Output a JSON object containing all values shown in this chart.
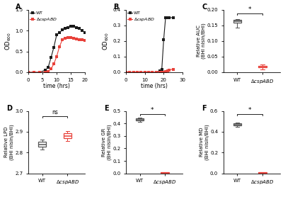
{
  "panel_A": {
    "WT_x": [
      0,
      2,
      4,
      6,
      7,
      8,
      9,
      10,
      11,
      12,
      13,
      14,
      15,
      16,
      17,
      18,
      19,
      20
    ],
    "WT_y": [
      0.0,
      0.0,
      0.0,
      0.05,
      0.12,
      0.35,
      0.6,
      0.9,
      0.95,
      1.02,
      1.05,
      1.08,
      1.1,
      1.1,
      1.08,
      1.05,
      1.0,
      0.95
    ],
    "csp_x": [
      0,
      2,
      4,
      6,
      7,
      8,
      9,
      10,
      11,
      12,
      13,
      14,
      15,
      16,
      17,
      18,
      19,
      20
    ],
    "csp_y": [
      0.0,
      0.0,
      0.0,
      0.0,
      0.02,
      0.08,
      0.2,
      0.38,
      0.62,
      0.78,
      0.82,
      0.83,
      0.84,
      0.82,
      0.8,
      0.78,
      0.78,
      0.77
    ],
    "xlabel": "time (hrs)",
    "ylabel": "OD$_{600}$",
    "xlim": [
      0,
      20
    ],
    "ylim": [
      0.0,
      1.5
    ],
    "yticks": [
      0.0,
      0.5,
      1.0,
      1.5
    ],
    "xticks": [
      0,
      5,
      10,
      15,
      20
    ]
  },
  "panel_B": {
    "WT_x": [
      0,
      2,
      4,
      6,
      8,
      10,
      12,
      14,
      16,
      18,
      19,
      20,
      21,
      22,
      23,
      25
    ],
    "WT_y": [
      0.0,
      0.0,
      0.0,
      0.0,
      0.0,
      0.0,
      0.0,
      0.0,
      0.0,
      0.01,
      0.02,
      0.21,
      0.35,
      0.35,
      0.35,
      0.35
    ],
    "csp_x": [
      0,
      2,
      4,
      6,
      8,
      10,
      12,
      14,
      16,
      18,
      19,
      20,
      21,
      22,
      23,
      25
    ],
    "csp_y": [
      0.0,
      0.0,
      0.0,
      0.0,
      0.0,
      0.0,
      0.0,
      0.0,
      0.0,
      0.0,
      0.0,
      0.0,
      0.005,
      0.01,
      0.015,
      0.02
    ],
    "xlabel": "time (hrs)",
    "ylabel": "OD$_{600}$",
    "xlim": [
      0,
      30
    ],
    "ylim": [
      0.0,
      0.4
    ],
    "yticks": [
      0.0,
      0.1,
      0.2,
      0.3,
      0.4
    ],
    "xticks": [
      0,
      10,
      20,
      30
    ]
  },
  "panel_C": {
    "WT_box": {
      "median": 0.163,
      "q1": 0.158,
      "q3": 0.167,
      "whislo": 0.143,
      "whishi": 0.17
    },
    "csp_box": {
      "median": 0.018,
      "q1": 0.015,
      "q3": 0.021,
      "whislo": 0.008,
      "whishi": 0.024
    },
    "ylabel": "Relative AUC\n(BHI nisin/BHI)",
    "ylim": [
      0.0,
      0.2
    ],
    "yticks": [
      0.0,
      0.05,
      0.1,
      0.15,
      0.2
    ],
    "sig": "*",
    "sig_y": 0.188
  },
  "panel_D": {
    "WT_box": {
      "median": 2.84,
      "q1": 2.828,
      "q3": 2.852,
      "whislo": 2.815,
      "whishi": 2.863
    },
    "csp_box": {
      "median": 2.878,
      "q1": 2.868,
      "q3": 2.893,
      "whislo": 2.857,
      "whishi": 2.903
    },
    "ylabel": "Relative LPD\n(BHI nisin/BHI)",
    "ylim": [
      2.7,
      3.0
    ],
    "yticks": [
      2.7,
      2.8,
      2.9,
      3.0
    ],
    "sig": "ns",
    "sig_y": 2.975
  },
  "panel_E": {
    "WT_box": {
      "median": 0.43,
      "q1": 0.422,
      "q3": 0.438,
      "whislo": 0.41,
      "whishi": 0.446
    },
    "csp_box": {
      "median": 0.005,
      "q1": 0.003,
      "q3": 0.008,
      "whislo": 0.001,
      "whishi": 0.01
    },
    "ylabel": "Relative GR\n(BHI nisin/BHI)",
    "ylim": [
      0.0,
      0.5
    ],
    "yticks": [
      0.0,
      0.1,
      0.2,
      0.3,
      0.4,
      0.5
    ],
    "sig": "*",
    "sig_y": 0.475
  },
  "panel_F": {
    "WT_box": {
      "median": 0.47,
      "q1": 0.46,
      "q3": 0.48,
      "whislo": 0.448,
      "whishi": 0.488
    },
    "csp_box": {
      "median": 0.005,
      "q1": 0.003,
      "q3": 0.008,
      "whislo": 0.001,
      "whishi": 0.01
    },
    "ylabel": "Relative MD\n(BHI nisin/BHI)",
    "ylim": [
      0.0,
      0.6
    ],
    "yticks": [
      0.0,
      0.2,
      0.4,
      0.6
    ],
    "sig": "*",
    "sig_y": 0.568
  },
  "wt_color": "#1a1a1a",
  "csp_color": "#e8413a",
  "wt_box_color": "#555555",
  "csp_box_color": "#e8413a",
  "legend_wt": "WT",
  "legend_csp": "ΔcspABD"
}
